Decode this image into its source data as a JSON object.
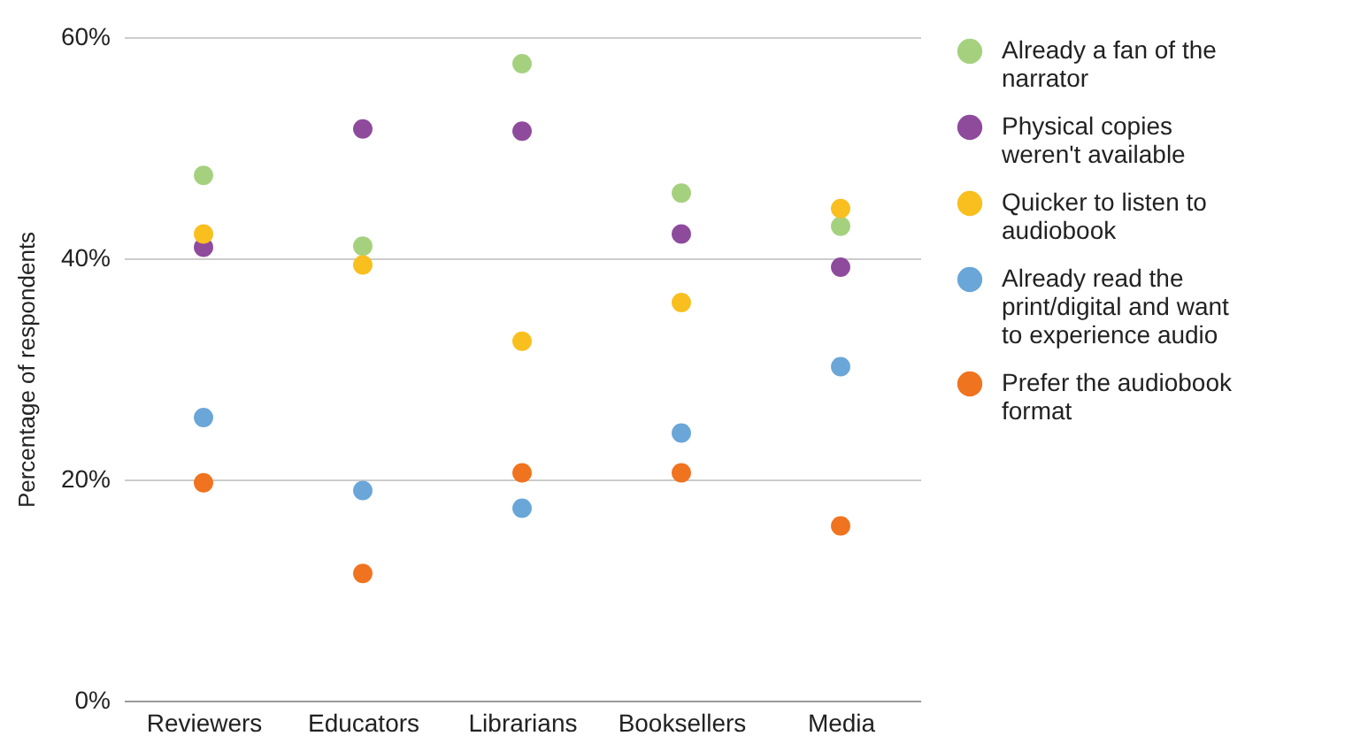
{
  "chart_data": {
    "type": "scatter",
    "ylabel": "Percentage of respondents",
    "categories": [
      "Reviewers",
      "Educators",
      "Librarians",
      "Booksellers",
      "Media"
    ],
    "series": [
      {
        "name": "Already a fan of the narrator",
        "color": "#a5d17f",
        "values": [
          47.5,
          41.1,
          57.6,
          45.9,
          42.9
        ]
      },
      {
        "name": "Physical copies weren't available",
        "color": "#8e4b9c",
        "values": [
          41.0,
          51.7,
          51.5,
          42.2,
          39.2
        ]
      },
      {
        "name": "Quicker to listen to audiobook",
        "color": "#f8bf1e",
        "values": [
          42.2,
          39.4,
          32.5,
          36.0,
          44.5
        ]
      },
      {
        "name": "Already read the print/digital and want to experience audio",
        "color": "#6aa6d8",
        "values": [
          25.6,
          19.0,
          17.4,
          24.2,
          30.2
        ]
      },
      {
        "name": "Prefer the audiobook format",
        "color": "#f0731f",
        "values": [
          19.7,
          11.5,
          20.6,
          20.6,
          15.8
        ]
      }
    ],
    "ylim": [
      0,
      60
    ],
    "yticks": [
      {
        "value": 0,
        "label": "0%"
      },
      {
        "value": 20,
        "label": "20%"
      },
      {
        "value": 40,
        "label": "40%"
      },
      {
        "value": 60,
        "label": "60%"
      }
    ],
    "grid": "y",
    "legend": "top right",
    "marker": "circle"
  }
}
